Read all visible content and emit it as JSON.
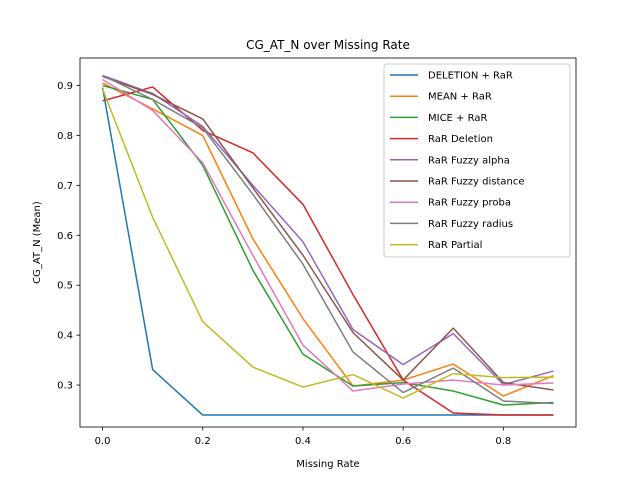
{
  "chart_data": {
    "type": "line",
    "title": "CG_AT_N over Missing Rate",
    "xlabel": "Missing Rate",
    "ylabel": "CG_AT_N (Mean)",
    "xlim": [
      -0.045,
      0.945
    ],
    "ylim": [
      0.216,
      0.955
    ],
    "xticks": [
      "0.0",
      "0.2",
      "0.4",
      "0.6",
      "0.8"
    ],
    "yticks": [
      "0.3",
      "0.4",
      "0.5",
      "0.6",
      "0.7",
      "0.8",
      "0.9"
    ],
    "grid": false,
    "legend_position": "top-right",
    "x": [
      0.0,
      0.1,
      0.2,
      0.3,
      0.4,
      0.5,
      0.6,
      0.7,
      0.8,
      0.9
    ],
    "series": [
      {
        "name": "DELETION + RaR",
        "color": "#1f77b4",
        "values": [
          0.896,
          0.331,
          0.24,
          0.24,
          0.24,
          0.24,
          0.24,
          0.24,
          0.24,
          0.24
        ]
      },
      {
        "name": "MEAN + RaR",
        "color": "#ff7f0e",
        "values": [
          0.905,
          0.853,
          0.8,
          0.593,
          0.433,
          0.298,
          0.31,
          0.342,
          0.278,
          0.319
        ]
      },
      {
        "name": "MICE + RaR",
        "color": "#2ca02c",
        "values": [
          0.9,
          0.872,
          0.74,
          0.53,
          0.362,
          0.298,
          0.305,
          0.288,
          0.26,
          0.265
        ]
      },
      {
        "name": "RaR Deletion",
        "color": "#d62728",
        "values": [
          0.869,
          0.897,
          0.81,
          0.765,
          0.662,
          0.481,
          0.31,
          0.244,
          0.24,
          0.24
        ]
      },
      {
        "name": "RaR Fuzzy alpha",
        "color": "#9467bd",
        "values": [
          0.92,
          0.884,
          0.818,
          0.7,
          0.587,
          0.411,
          0.341,
          0.403,
          0.301,
          0.328
        ]
      },
      {
        "name": "RaR Fuzzy distance",
        "color": "#8c564b",
        "values": [
          0.918,
          0.882,
          0.833,
          0.695,
          0.56,
          0.405,
          0.31,
          0.414,
          0.305,
          0.29
        ]
      },
      {
        "name": "RaR Fuzzy proba",
        "color": "#e377c2",
        "values": [
          0.912,
          0.85,
          0.745,
          0.56,
          0.38,
          0.288,
          0.302,
          0.31,
          0.3,
          0.304
        ]
      },
      {
        "name": "RaR Fuzzy radius",
        "color": "#7f7f7f",
        "values": [
          0.92,
          0.872,
          0.815,
          0.682,
          0.542,
          0.366,
          0.285,
          0.334,
          0.268,
          0.263
        ]
      },
      {
        "name": "RaR Partial",
        "color": "#bcbd22",
        "values": [
          0.893,
          0.636,
          0.427,
          0.336,
          0.296,
          0.321,
          0.274,
          0.323,
          0.315,
          0.316
        ]
      }
    ]
  }
}
